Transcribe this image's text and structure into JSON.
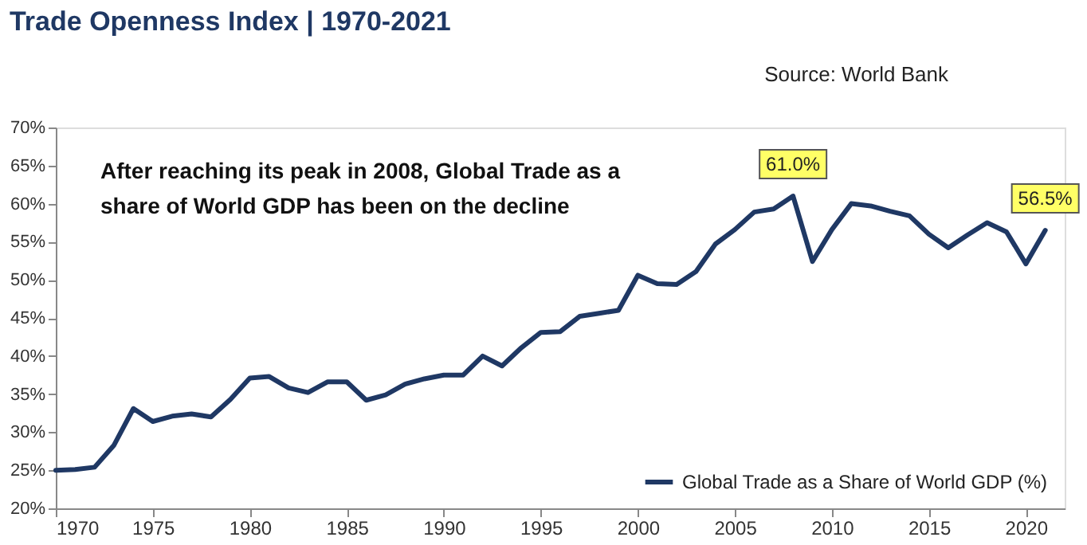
{
  "chart_data": {
    "type": "line",
    "title": "Trade Openness Index | 1970-2021",
    "annotations": [
      "Source: World Bank",
      "After reaching its peak in 2008, Global Trade as a share of World GDP has been on the decline"
    ],
    "x": [
      1970,
      1971,
      1972,
      1973,
      1974,
      1975,
      1976,
      1977,
      1978,
      1979,
      1980,
      1981,
      1982,
      1983,
      1984,
      1985,
      1986,
      1987,
      1988,
      1989,
      1990,
      1991,
      1992,
      1993,
      1994,
      1995,
      1996,
      1997,
      1998,
      1999,
      2000,
      2001,
      2002,
      2003,
      2004,
      2005,
      2006,
      2007,
      2008,
      2009,
      2010,
      2011,
      2012,
      2013,
      2014,
      2015,
      2016,
      2017,
      2018,
      2019,
      2020,
      2021
    ],
    "series": [
      {
        "name": "Global Trade as a Share of World GDP (%)",
        "color": "#1f3864",
        "values": [
          25.0,
          25.1,
          25.4,
          28.3,
          33.1,
          31.4,
          32.1,
          32.4,
          32.0,
          34.3,
          37.1,
          37.3,
          35.8,
          35.2,
          36.6,
          36.6,
          34.2,
          34.9,
          36.3,
          37.0,
          37.5,
          37.5,
          40.0,
          38.7,
          41.1,
          43.1,
          43.2,
          45.2,
          45.6,
          46.0,
          50.6,
          49.5,
          49.4,
          51.1,
          54.7,
          56.6,
          58.9,
          59.3,
          61.0,
          52.4,
          56.6,
          60.0,
          59.7,
          59.0,
          58.4,
          56.0,
          54.2,
          55.9,
          57.5,
          56.3,
          52.1,
          56.5
        ],
        "value_labels": [
          null,
          null,
          null,
          null,
          null,
          null,
          null,
          null,
          null,
          null,
          null,
          null,
          null,
          null,
          null,
          null,
          null,
          null,
          null,
          null,
          null,
          null,
          null,
          null,
          null,
          null,
          null,
          null,
          null,
          null,
          null,
          null,
          null,
          null,
          null,
          null,
          null,
          null,
          "61.0%",
          null,
          null,
          null,
          null,
          null,
          null,
          null,
          null,
          null,
          null,
          null,
          null,
          "56.5%"
        ]
      }
    ],
    "xlim": [
      1970,
      2022
    ],
    "xticks": [
      1970,
      1975,
      1980,
      1985,
      1990,
      1995,
      2000,
      2005,
      2010,
      2015,
      2020
    ],
    "ylim": [
      20,
      70
    ],
    "yticks": [
      {
        "value": 20,
        "label": "20%"
      },
      {
        "value": 25,
        "label": "25%"
      },
      {
        "value": 30,
        "label": "30%"
      },
      {
        "value": 35,
        "label": "35%"
      },
      {
        "value": 40,
        "label": "40%"
      },
      {
        "value": 45,
        "label": "45%"
      },
      {
        "value": 50,
        "label": "50%"
      },
      {
        "value": 55,
        "label": "55%"
      },
      {
        "value": 60,
        "label": "60%"
      },
      {
        "value": 65,
        "label": "65%"
      },
      {
        "value": 70,
        "label": "70%"
      }
    ],
    "grid": false,
    "legend": "bottom right",
    "marker": "none",
    "line_style": "solid"
  }
}
